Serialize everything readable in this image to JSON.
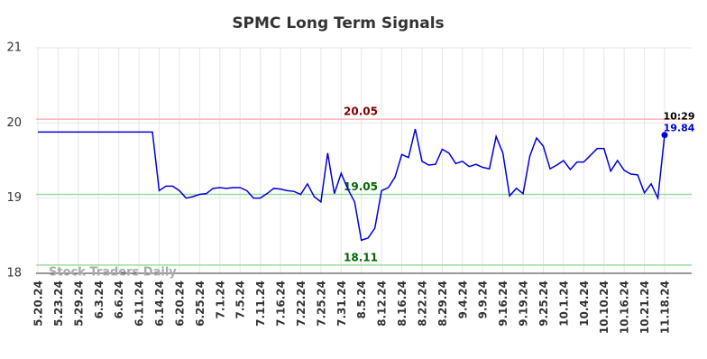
{
  "chart_data": {
    "type": "line",
    "title": "SPMC Long Term Signals",
    "categories": [
      "5.20.24",
      null,
      null,
      "5.23.24",
      null,
      null,
      "5.29.24",
      null,
      null,
      "6.3.24",
      null,
      null,
      "6.6.24",
      null,
      null,
      "6.11.24",
      null,
      null,
      "6.14.24",
      null,
      null,
      "6.20.24",
      null,
      null,
      "6.25.24",
      null,
      null,
      "7.1.24",
      null,
      null,
      "7.5.24",
      null,
      null,
      "7.11.24",
      null,
      null,
      "7.16.24",
      null,
      null,
      "7.22.24",
      null,
      null,
      "7.25.24",
      null,
      null,
      "7.31.24",
      null,
      null,
      "8.5.24",
      null,
      null,
      "8.12.24",
      null,
      null,
      "8.16.24",
      null,
      null,
      "8.22.24",
      null,
      null,
      "8.29.24",
      null,
      null,
      "9.4.24",
      null,
      null,
      "9.9.24",
      null,
      null,
      "9.16.24",
      null,
      null,
      "9.19.24",
      null,
      null,
      "9.25.24",
      null,
      null,
      "10.1.24",
      null,
      null,
      "10.4.24",
      null,
      null,
      "10.10.24",
      null,
      null,
      "10.16.24",
      null,
      null,
      "10.21.24",
      null,
      null,
      "11.18.24"
    ],
    "series": [
      {
        "color": "#0000dd",
        "values": [
          19.88,
          19.88,
          19.88,
          19.88,
          19.88,
          19.88,
          19.88,
          19.88,
          19.88,
          19.88,
          19.88,
          19.88,
          19.88,
          19.88,
          19.88,
          19.88,
          19.88,
          19.88,
          19.1,
          19.16,
          19.16,
          19.1,
          19.0,
          19.02,
          19.05,
          19.06,
          19.13,
          19.14,
          19.13,
          19.14,
          19.14,
          19.1,
          19.0,
          19.0,
          19.06,
          19.13,
          19.12,
          19.1,
          19.09,
          19.05,
          19.19,
          19.02,
          18.95,
          19.6,
          19.06,
          19.33,
          19.12,
          18.95,
          18.44,
          18.47,
          18.6,
          19.1,
          19.14,
          19.28,
          19.58,
          19.54,
          19.92,
          19.49,
          19.44,
          19.45,
          19.65,
          19.6,
          19.46,
          19.49,
          19.42,
          19.45,
          19.41,
          19.39,
          19.82,
          19.6,
          19.03,
          19.13,
          19.06,
          19.56,
          19.8,
          19.69,
          19.39,
          19.44,
          19.5,
          19.38,
          19.48,
          19.48,
          19.57,
          19.66,
          19.66,
          19.36,
          19.5,
          19.37,
          19.32,
          19.31,
          19.07,
          19.19,
          19.0,
          19.84
        ]
      }
    ],
    "ylim": [
      18,
      21
    ],
    "yticks": [
      18,
      19,
      20,
      21
    ],
    "grid": true,
    "hlines": [
      {
        "value": 20.05,
        "color": "#ffb3b3",
        "label_color": "#800000"
      },
      {
        "value": 19.05,
        "color": "#99dd99",
        "label_color": "#006600"
      },
      {
        "value": 18.11,
        "color": "#99dd99",
        "label_color": "#006600"
      }
    ],
    "last_time": "10:29",
    "watermark": "Stock Traders Daily"
  }
}
